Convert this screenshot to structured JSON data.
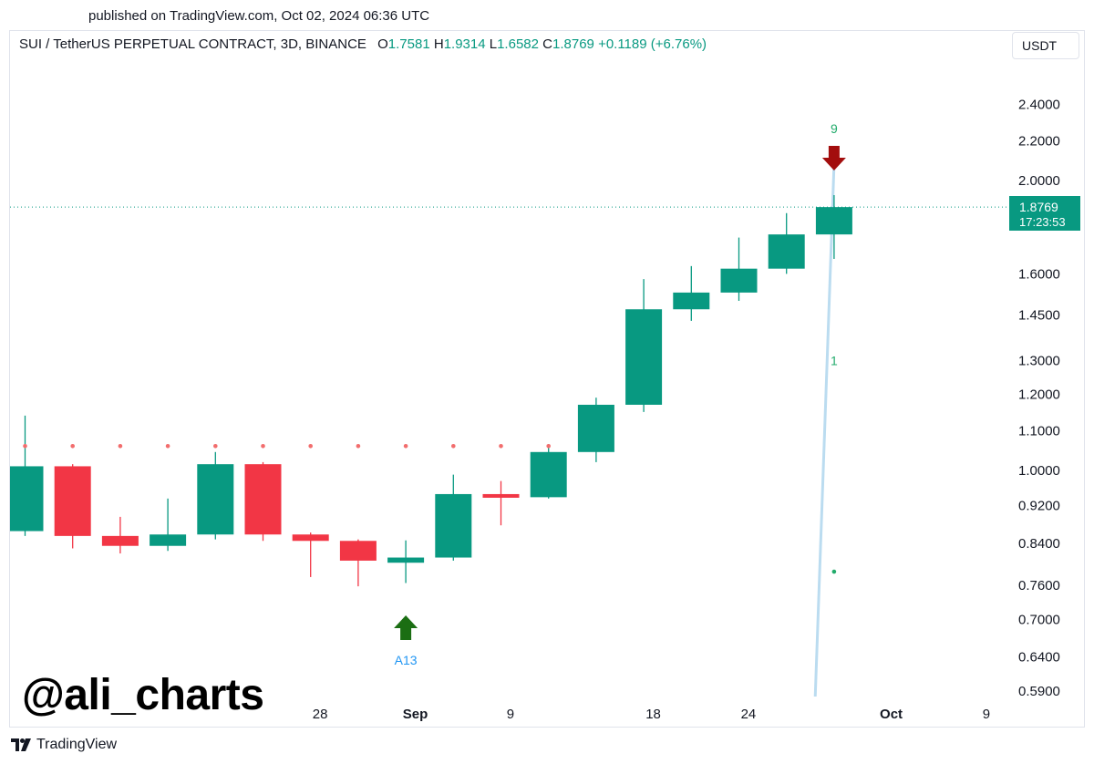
{
  "published": "published on TradingView.com, Oct 02, 2024 06:36 UTC",
  "legend": {
    "symbol": "SUI / TetherUS PERPETUAL CONTRACT, 3D, BINANCE",
    "o_label": "O",
    "o_value": "1.7581",
    "h_label": "H",
    "h_value": "1.9314",
    "l_label": "L",
    "l_value": "1.6582",
    "c_label": "C",
    "c_value": "1.8769",
    "change": "+0.1189 (+6.76%)"
  },
  "currency_button": "USDT",
  "watermark": "@ali_charts",
  "footer": {
    "brand": "TradingView"
  },
  "colors": {
    "up": "#089981",
    "down": "#f23645",
    "accent": "#2196f3",
    "dots_red": "#f26d6d",
    "dots_green": "#22ab6b",
    "arrow_green": "#1b6e13",
    "arrow_red": "#a30d0d",
    "trendline": "#bbdcf0"
  },
  "chart_data": {
    "type": "candlestick",
    "title": "SUI / TetherUS PERPETUAL CONTRACT, 3D, BINANCE",
    "scale": "log",
    "ylim": [
      0.57,
      2.65
    ],
    "y_ticks": [
      "2.4000",
      "2.2000",
      "2.0000",
      "1.6000",
      "1.4500",
      "1.3000",
      "1.2000",
      "1.1000",
      "1.0000",
      "0.9200",
      "0.8400",
      "0.7600",
      "0.7000",
      "0.6400",
      "0.5900"
    ],
    "x_ticks": [
      {
        "label": "28",
        "bold": false,
        "pos": 6.2
      },
      {
        "label": "Sep",
        "bold": true,
        "pos": 8.2
      },
      {
        "label": "9",
        "bold": false,
        "pos": 10.2
      },
      {
        "label": "18",
        "bold": false,
        "pos": 13.2
      },
      {
        "label": "24",
        "bold": false,
        "pos": 15.2
      },
      {
        "label": "Oct",
        "bold": true,
        "pos": 18.2
      },
      {
        "label": "9",
        "bold": false,
        "pos": 20.2
      }
    ],
    "candles": [
      {
        "o": 0.865,
        "h": 1.14,
        "l": 0.855,
        "c": 1.01
      },
      {
        "o": 1.01,
        "h": 1.015,
        "l": 0.83,
        "c": 0.855
      },
      {
        "o": 0.855,
        "h": 0.895,
        "l": 0.82,
        "c": 0.835
      },
      {
        "o": 0.835,
        "h": 0.935,
        "l": 0.825,
        "c": 0.858
      },
      {
        "o": 0.858,
        "h": 1.045,
        "l": 0.848,
        "c": 1.015
      },
      {
        "o": 1.015,
        "h": 1.02,
        "l": 0.845,
        "c": 0.858
      },
      {
        "o": 0.858,
        "h": 0.862,
        "l": 0.775,
        "c": 0.845
      },
      {
        "o": 0.845,
        "h": 0.848,
        "l": 0.758,
        "c": 0.806
      },
      {
        "o": 0.802,
        "h": 0.846,
        "l": 0.764,
        "c": 0.812
      },
      {
        "o": 0.812,
        "h": 0.99,
        "l": 0.806,
        "c": 0.945
      },
      {
        "o": 0.945,
        "h": 0.975,
        "l": 0.877,
        "c": 0.938
      },
      {
        "o": 0.938,
        "h": 1.065,
        "l": 0.935,
        "c": 1.045
      },
      {
        "o": 1.045,
        "h": 1.19,
        "l": 1.02,
        "c": 1.17
      },
      {
        "o": 1.17,
        "h": 1.58,
        "l": 1.15,
        "c": 1.47
      },
      {
        "o": 1.47,
        "h": 1.63,
        "l": 1.43,
        "c": 1.53
      },
      {
        "o": 1.53,
        "h": 1.745,
        "l": 1.5,
        "c": 1.62
      },
      {
        "o": 1.62,
        "h": 1.85,
        "l": 1.6,
        "c": 1.7581
      },
      {
        "o": 1.7581,
        "h": 1.9314,
        "l": 1.6582,
        "c": 1.8769
      }
    ],
    "resistance_dots": {
      "level": 1.06,
      "from_index": 0,
      "to_index": 11
    },
    "current_price": {
      "value": "1.8769",
      "countdown": "17:23:53",
      "level": 1.8769
    },
    "buy_signal": {
      "index": 8,
      "label": "A13"
    },
    "sell_signal": {
      "index": 17,
      "label": "9"
    },
    "count_label": {
      "index": 17,
      "label": "1",
      "level": 1.3
    },
    "green_dot": {
      "index": 17,
      "level": 0.785
    },
    "trendline": {
      "from": {
        "pos": 16.6,
        "price": 0.575
      },
      "to": {
        "pos": 17.0,
        "price": 2.08
      }
    }
  }
}
